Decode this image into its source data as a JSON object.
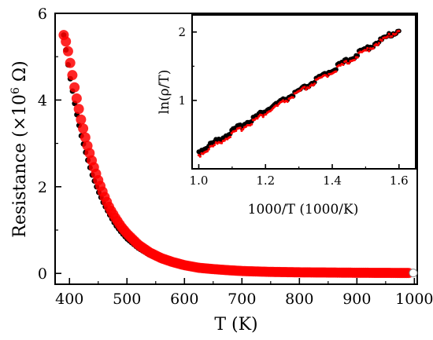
{
  "chart_data": [
    {
      "type": "scatter",
      "xlabel": "T (K)",
      "ylabel_prefix": "Resistance (×10",
      "ylabel_exp": "6",
      "ylabel_suffix": " Ω)",
      "xlim": [
        375,
        1005
      ],
      "ylim": [
        -0.25,
        6
      ],
      "xticks": [
        400,
        500,
        600,
        700,
        800,
        900,
        1000
      ],
      "yticks": [
        0,
        2,
        4,
        6
      ],
      "grid": false,
      "series": [
        {
          "color": "#000000",
          "x": [
            390,
            400,
            410,
            420,
            430,
            440,
            450,
            460,
            470,
            480,
            490,
            500,
            520,
            540,
            560,
            580,
            600,
            625,
            650,
            675,
            700,
            750,
            800,
            850,
            900,
            950,
            1000
          ],
          "values": [
            5.5,
            4.6,
            3.85,
            3.2,
            2.7,
            2.25,
            1.9,
            1.6,
            1.35,
            1.12,
            0.95,
            0.8,
            0.58,
            0.42,
            0.31,
            0.23,
            0.17,
            0.12,
            0.09,
            0.07,
            0.05,
            0.035,
            0.025,
            0.02,
            0.015,
            0.012,
            0.01
          ]
        },
        {
          "color": "#ff0000",
          "x": [
            390,
            395,
            400,
            410,
            420,
            430,
            440,
            450,
            460,
            470,
            480,
            490,
            500,
            520,
            540,
            560,
            580,
            600,
            625,
            650,
            675,
            700,
            750,
            800,
            850,
            900,
            950,
            990
          ],
          "values": [
            5.5,
            5.3,
            4.95,
            4.2,
            3.55,
            3.0,
            2.55,
            2.15,
            1.8,
            1.5,
            1.28,
            1.08,
            0.92,
            0.66,
            0.48,
            0.35,
            0.26,
            0.19,
            0.13,
            0.1,
            0.075,
            0.055,
            0.035,
            0.025,
            0.02,
            0.015,
            0.012,
            0.01
          ]
        }
      ]
    },
    {
      "type": "scatter",
      "xlabel": "1000/T (1000/K)",
      "ylabel": "ln(ρ/T)",
      "xlim": [
        0.98,
        1.65
      ],
      "ylim": [
        0.0,
        2.25
      ],
      "xticks": [
        1.0,
        1.2,
        1.4,
        1.6
      ],
      "ytick_values": [
        1,
        2
      ],
      "grid": false,
      "series": [
        {
          "color": "#000000",
          "x": [
            1.0,
            1.1,
            1.2,
            1.3,
            1.4,
            1.5,
            1.6
          ],
          "values": [
            0.25,
            0.55,
            0.85,
            1.13,
            1.45,
            1.75,
            2.03
          ]
        },
        {
          "color": "#ff0000",
          "x": [
            1.0,
            1.6
          ],
          "values": [
            0.2,
            2.03
          ]
        }
      ]
    }
  ]
}
